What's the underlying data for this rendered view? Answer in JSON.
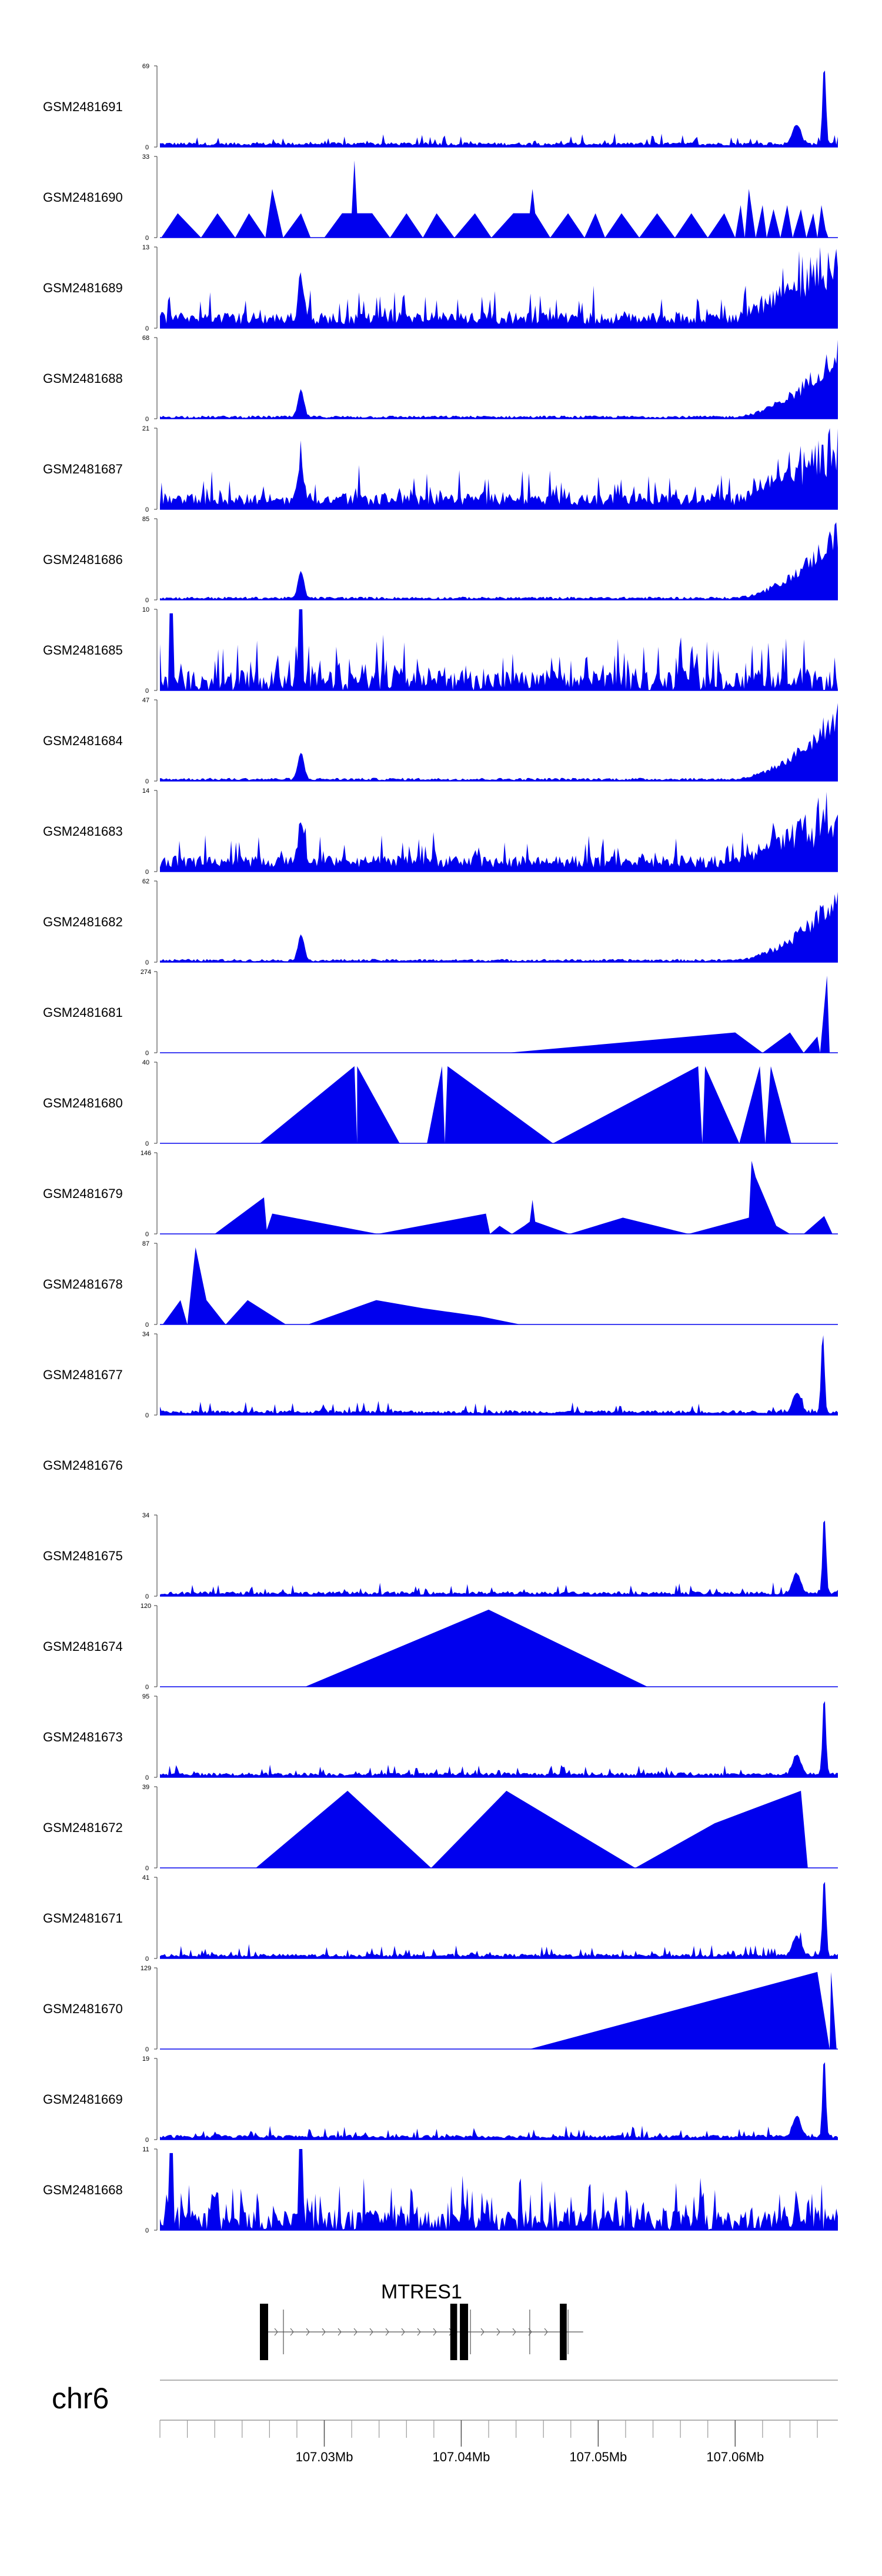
{
  "chart_data": {
    "type": "area",
    "title": "",
    "x_range": [
      107.018,
      107.0675
    ],
    "chromosome": "chr6",
    "coordinate_ticks": [
      "107.03Mb",
      "107.04Mb",
      "107.05Mb",
      "107.06Mb"
    ],
    "coordinate_tick_values": [
      107.03,
      107.04,
      107.05,
      107.06
    ],
    "gene": {
      "name": "MTRES1",
      "strand": "+",
      "start": 107.0259,
      "end": 107.0483,
      "exons": [
        [
          107.0259,
          107.0265
        ],
        [
          107.0398,
          107.0403
        ],
        [
          107.0405,
          107.0411
        ],
        [
          107.0478,
          107.0483
        ]
      ]
    },
    "tracks": [
      {
        "name": "GSM2481691",
        "ymax": "69",
        "max": 69,
        "profile": "peak_right",
        "peak": 107.0665
      },
      {
        "name": "GSM2481690",
        "ymax": "33",
        "max": 33,
        "profile": "triangles"
      },
      {
        "name": "GSM2481689",
        "ymax": "13",
        "max": 13,
        "profile": "dense_right"
      },
      {
        "name": "GSM2481688",
        "ymax": "68",
        "max": 68,
        "profile": "peak_left_ramp_right",
        "peak": 107.0283
      },
      {
        "name": "GSM2481687",
        "ymax": "21",
        "max": 21,
        "profile": "dense_right"
      },
      {
        "name": "GSM2481686",
        "ymax": "85",
        "max": 85,
        "profile": "peak_left_ramp_right",
        "peak": 107.0283
      },
      {
        "name": "GSM2481685",
        "ymax": "10",
        "max": 10,
        "profile": "uniform_spiky"
      },
      {
        "name": "GSM2481684",
        "ymax": "47",
        "max": 47,
        "profile": "peak_left_ramp_right",
        "peak": 107.0283
      },
      {
        "name": "GSM2481683",
        "ymax": "14",
        "max": 14,
        "profile": "dense_right"
      },
      {
        "name": "GSM2481682",
        "ymax": "62",
        "max": 62,
        "profile": "peak_left_ramp_right",
        "peak": 107.0283
      },
      {
        "name": "GSM2481681",
        "ymax": "274",
        "max": 274,
        "profile": "sparse_right"
      },
      {
        "name": "GSM2481680",
        "ymax": "40",
        "max": 40,
        "profile": "big_triangles"
      },
      {
        "name": "GSM2481679",
        "ymax": "146",
        "max": 146,
        "profile": "mixed_sparse"
      },
      {
        "name": "GSM2481678",
        "ymax": "87",
        "max": 87,
        "profile": "sparse_left"
      },
      {
        "name": "GSM2481677",
        "ymax": "34",
        "max": 34,
        "profile": "peak_right",
        "peak": 107.0664
      },
      {
        "name": "GSM2481676",
        "ymax": "",
        "max": 0,
        "profile": "empty"
      },
      {
        "name": "GSM2481675",
        "ymax": "34",
        "max": 34,
        "profile": "peak_right",
        "peak": 107.0665
      },
      {
        "name": "GSM2481674",
        "ymax": "120",
        "max": 120,
        "profile": "single_triangle"
      },
      {
        "name": "GSM2481673",
        "ymax": "95",
        "max": 95,
        "profile": "peak_right",
        "peak": 107.0665
      },
      {
        "name": "GSM2481672",
        "ymax": "39",
        "max": 39,
        "profile": "three_triangles"
      },
      {
        "name": "GSM2481671",
        "ymax": "41",
        "max": 41,
        "profile": "peak_right",
        "peak": 107.0665
      },
      {
        "name": "GSM2481670",
        "ymax": "129",
        "max": 129,
        "profile": "right_triangles"
      },
      {
        "name": "GSM2481669",
        "ymax": "19",
        "max": 19,
        "profile": "peak_right",
        "peak": 107.0665
      },
      {
        "name": "GSM2481668",
        "ymax": "11",
        "max": 11,
        "profile": "uniform_spiky"
      }
    ],
    "fill_color": "#0000ee",
    "axis_color": "#555555"
  }
}
